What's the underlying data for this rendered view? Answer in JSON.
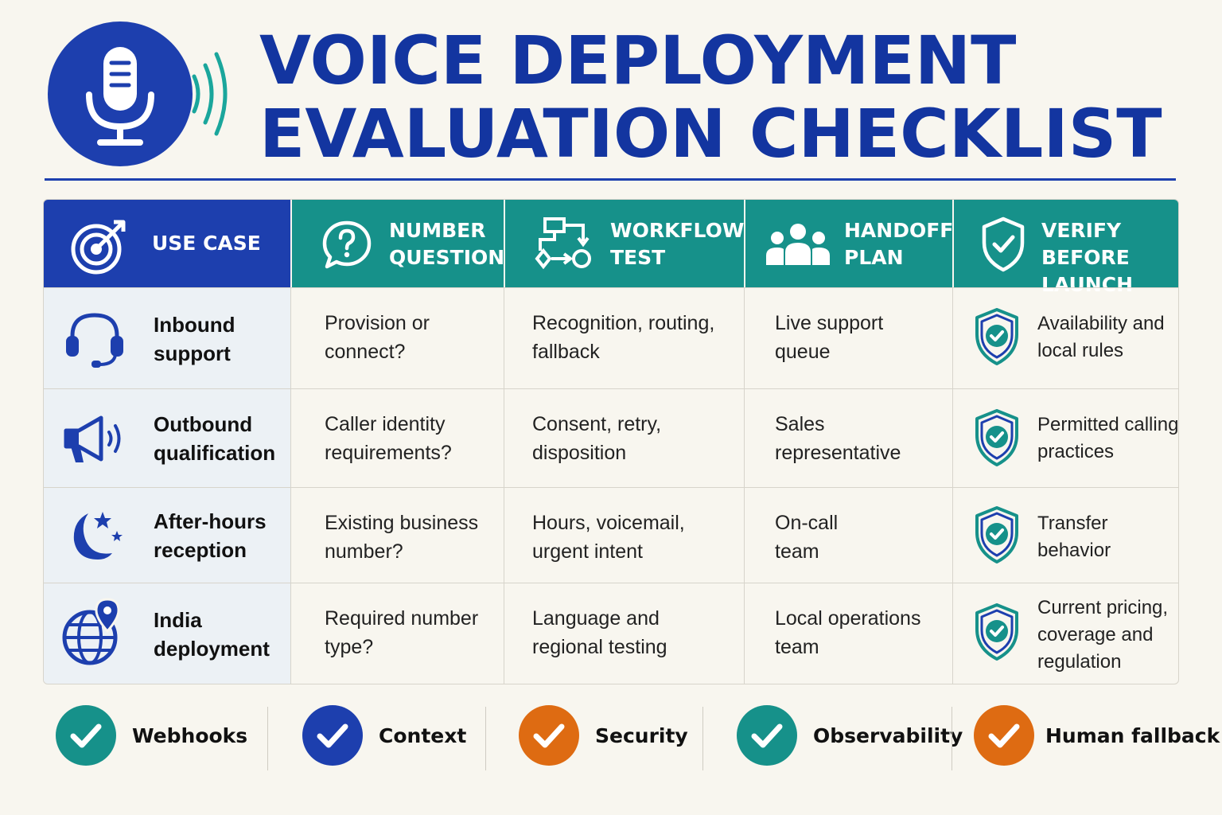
{
  "title": {
    "line1": "VOICE DEPLOYMENT",
    "line2": "EVALUATION CHECKLIST",
    "icon": "microphone-icon"
  },
  "colors": {
    "navy": "#1d3fae",
    "teal": "#16918a",
    "orange": "#de6b12"
  },
  "columns": [
    {
      "label": "USE CASE",
      "icon": "target-icon"
    },
    {
      "label": "NUMBER\nQUESTION",
      "icon": "question-bubble-icon"
    },
    {
      "label": "WORKFLOW\nTEST",
      "icon": "flowchart-icon"
    },
    {
      "label": "HANDOFF\nPLAN",
      "icon": "people-icon"
    },
    {
      "label": "VERIFY BEFORE\nLAUNCH",
      "icon": "shield-check-icon"
    }
  ],
  "rows": [
    {
      "use_case": "Inbound\nsupport",
      "icon": "headset-icon",
      "number_question": "Provision or\nconnect?",
      "workflow_test": "Recognition, routing,\nfallback",
      "handoff_plan": "Live support\nqueue",
      "verify": "Availability and\nlocal rules"
    },
    {
      "use_case": "Outbound\nqualification",
      "icon": "megaphone-icon",
      "number_question": "Caller identity\nrequirements?",
      "workflow_test": "Consent, retry,\ndisposition",
      "handoff_plan": "Sales\nrepresentative",
      "verify": "Permitted calling\npractices"
    },
    {
      "use_case": "After-hours\nreception",
      "icon": "moon-stars-icon",
      "number_question": "Existing business\nnumber?",
      "workflow_test": "Hours, voicemail,\nurgent intent",
      "handoff_plan": "On-call\nteam",
      "verify": "Transfer\nbehavior"
    },
    {
      "use_case": "India\ndeployment",
      "icon": "globe-pin-icon",
      "number_question": "Required number\ntype?",
      "workflow_test": "Language and\nregional testing",
      "handoff_plan": "Local operations\nteam",
      "verify": "Current pricing,\ncoverage and\nregulation"
    }
  ],
  "footer": [
    {
      "label": "Webhooks",
      "color": "#16918a",
      "icon": "check-icon"
    },
    {
      "label": "Context",
      "color": "#1d3fae",
      "icon": "check-icon"
    },
    {
      "label": "Security",
      "color": "#de6b12",
      "icon": "check-icon"
    },
    {
      "label": "Observability",
      "color": "#16918a",
      "icon": "check-icon"
    },
    {
      "label": "Human fallback",
      "color": "#de6b12",
      "icon": "check-icon"
    }
  ]
}
